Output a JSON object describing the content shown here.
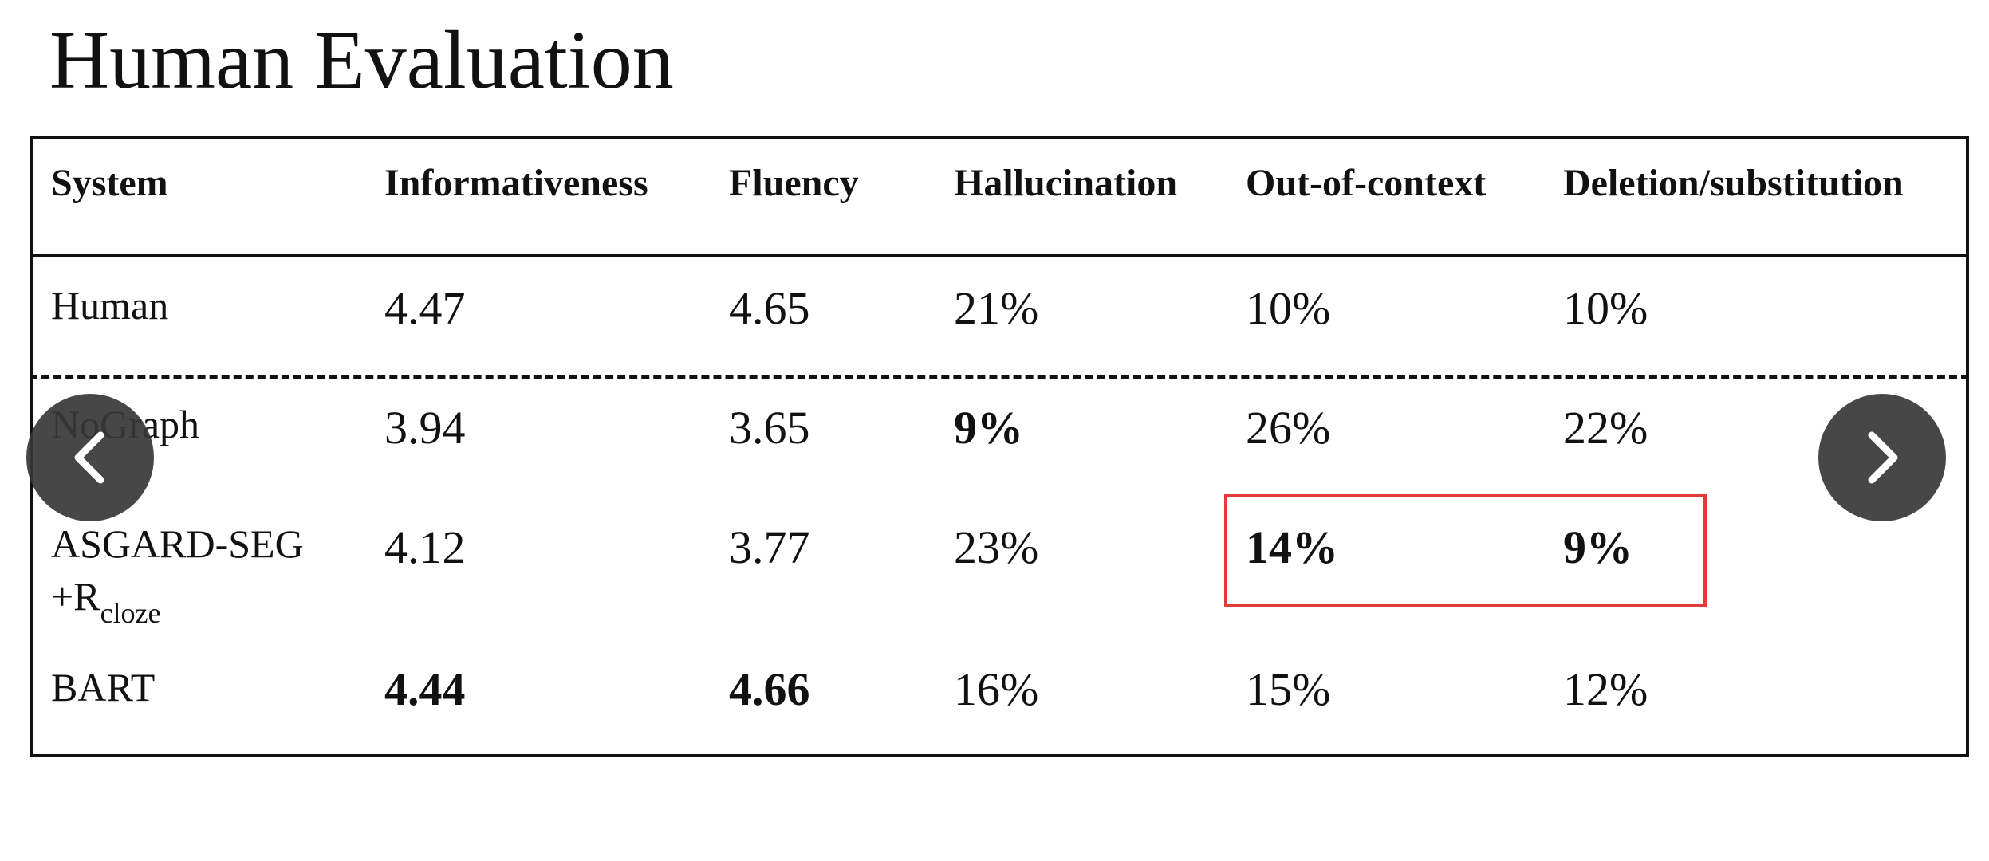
{
  "slide": {
    "title": "Human Evaluation"
  },
  "table": {
    "headers": [
      "System",
      "Informativeness",
      "Fluency",
      "Hallucination",
      "Out-of-context",
      "Deletion/substitution"
    ],
    "rows": [
      {
        "system": "Human",
        "informativeness": "4.47",
        "fluency": "4.65",
        "hallucination": "21%",
        "out_of_context": "10%",
        "deletion_substitution": "10%"
      },
      {
        "system": "NoGraph",
        "informativeness": "3.94",
        "fluency": "3.65",
        "hallucination": "9%",
        "out_of_context": "26%",
        "deletion_substitution": "22%"
      },
      {
        "system": "ASGARD-SEG",
        "system_line2": "+R",
        "system_subscript": "cloze",
        "informativeness": "4.12",
        "fluency": "3.77",
        "hallucination": "23%",
        "out_of_context": "14%",
        "deletion_substitution": "9%"
      },
      {
        "system": "BART",
        "informativeness": "4.44",
        "fluency": "4.66",
        "hallucination": "16%",
        "out_of_context": "15%",
        "deletion_substitution": "12%"
      }
    ],
    "bold_cells": [
      "NoGraph.hallucination",
      "ASGARD-SEG.out_of_context",
      "ASGARD-SEG.deletion_substitution",
      "BART.informativeness",
      "BART.fluency"
    ],
    "highlight_color": "#e33b36"
  },
  "carousel": {
    "prev_icon": "chevron-left-icon",
    "next_icon": "chevron-right-icon"
  }
}
